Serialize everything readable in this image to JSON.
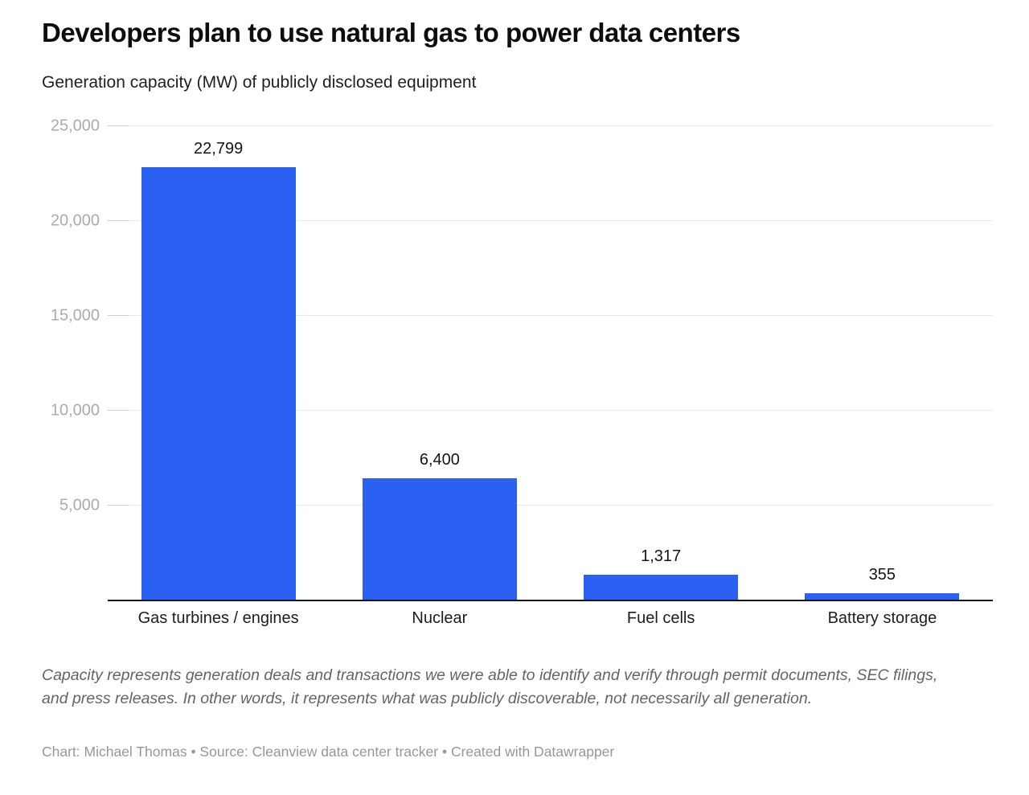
{
  "header": {
    "title": "Developers plan to use natural gas to power data centers",
    "subtitle": "Generation capacity (MW) of publicly disclosed equipment"
  },
  "chart_data": {
    "type": "bar",
    "title": "Developers plan to use natural gas to power data centers",
    "subtitle": "Generation capacity (MW) of publicly disclosed equipment",
    "categories": [
      "Gas turbines / engines",
      "Nuclear",
      "Fuel cells",
      "Battery storage"
    ],
    "values": [
      22799,
      6400,
      1317,
      355
    ],
    "value_labels": [
      "22,799",
      "6,400",
      "1,317",
      "355"
    ],
    "xlabel": "",
    "ylabel": "Generation capacity (MW)",
    "ylim": [
      0,
      25000
    ],
    "yticks": {
      "values": [
        5000,
        10000,
        15000,
        20000,
        25000
      ],
      "labels": [
        "5,000",
        "10,000",
        "15,000",
        "20,000",
        "25,000"
      ]
    },
    "grid": "horizontal",
    "legend": "none"
  },
  "footer": {
    "note": "Capacity represents generation deals and transactions we were able to identify and verify through permit documents, SEC filings, and press releases. In other words, it represents what was publicly discoverable, not necessarily all generation.",
    "credit": "Chart: Michael Thomas • Source: Cleanview data center tracker • Created with Datawrapper"
  },
  "colors": {
    "bar": "#2b61f2",
    "grid": "#e9e9e9",
    "tick": "#cfcfcf",
    "axis_line": "#161616",
    "ytick_label": "#ababab",
    "background": "#ffffff"
  }
}
